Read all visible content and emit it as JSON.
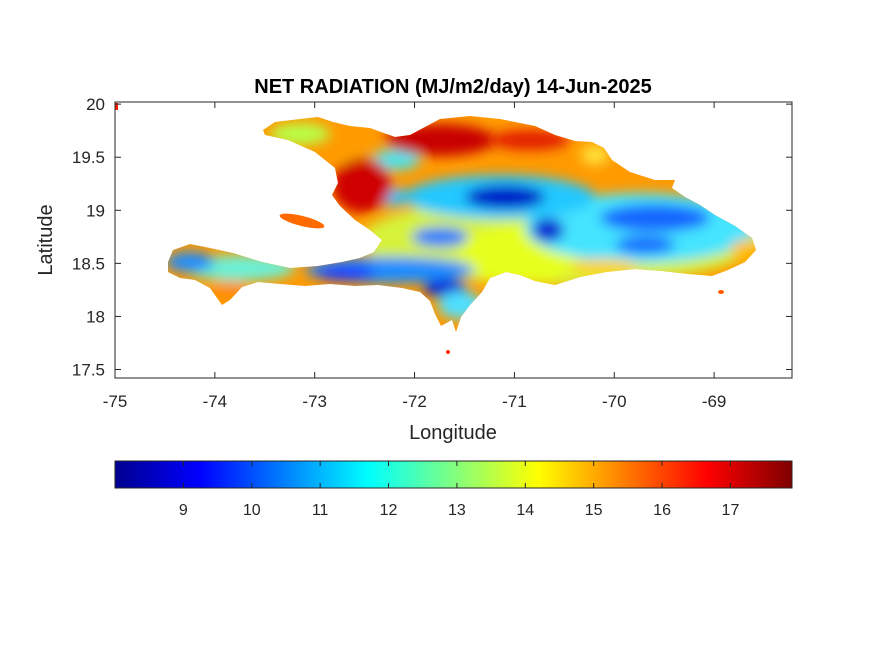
{
  "chart_data": {
    "type": "heatmap",
    "title": "NET RADIATION (MJ/m2/day) 14-Jun-2025",
    "xlabel": "Longitude",
    "ylabel": "Latitude",
    "xlim": [
      -75,
      -68.22
    ],
    "ylim": [
      17.42,
      20.02
    ],
    "xticks": [
      -75,
      -74,
      -73,
      -72,
      -71,
      -70,
      -69
    ],
    "xtick_labels": [
      "-75",
      "-74",
      "-73",
      "-72",
      "-71",
      "-70",
      "-69"
    ],
    "yticks": [
      17.5,
      18,
      18.5,
      19,
      19.5,
      20
    ],
    "ytick_labels": [
      "17.5",
      "18",
      "18.5",
      "19",
      "19.5",
      "20"
    ],
    "grid": false,
    "colormap": "jet",
    "colorbar": {
      "location": "below",
      "clim": [
        8.0,
        17.9
      ],
      "ticks": [
        9,
        10,
        11,
        12,
        13,
        14,
        15,
        16,
        17
      ],
      "tick_labels": [
        "9",
        "10",
        "11",
        "12",
        "13",
        "14",
        "15",
        "16",
        "17"
      ]
    },
    "region": "Hispaniola (Haiti and Dominican Republic)",
    "value_range_observed": [
      8.0,
      17.9
    ],
    "notable_features": [
      {
        "lon": -72.6,
        "lat": 19.4,
        "value": 17.5
      },
      {
        "lon": -71.3,
        "lat": 19.72,
        "value": 17.4
      },
      {
        "lon": -71.1,
        "lat": 19.05,
        "value": 9.0
      },
      {
        "lon": -70.7,
        "lat": 18.85,
        "value": 9.3
      },
      {
        "lon": -69.9,
        "lat": 19.0,
        "value": 10.0
      },
      {
        "lon": -69.6,
        "lat": 18.6,
        "value": 10.3
      },
      {
        "lon": -72.8,
        "lat": 18.45,
        "value": 10.2
      },
      {
        "lon": -71.8,
        "lat": 18.28,
        "value": 9.6
      },
      {
        "lon": -74.3,
        "lat": 18.45,
        "value": 10.5
      },
      {
        "lon": -71.4,
        "lat": 18.6,
        "value": 13.6
      },
      {
        "lon": -72.0,
        "lat": 18.9,
        "value": 15.2
      },
      {
        "lon": -73.8,
        "lat": 18.3,
        "value": 15.0
      },
      {
        "lon": -68.75,
        "lat": 18.5,
        "value": 15.4
      }
    ]
  }
}
